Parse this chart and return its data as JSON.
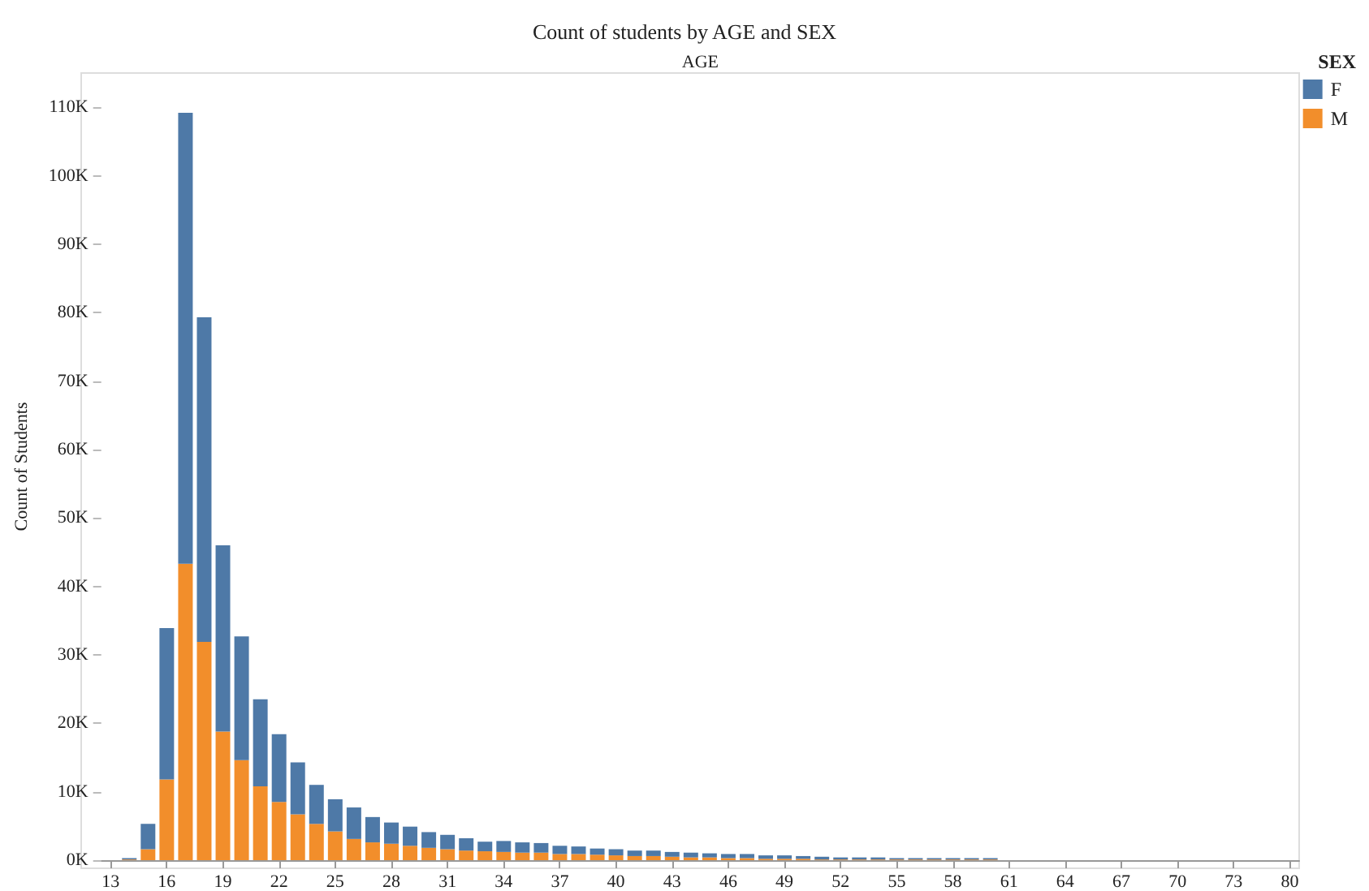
{
  "chart_data": {
    "type": "bar",
    "title": "Count of students by AGE and SEX",
    "xlabel": "AGE",
    "ylabel": "Count of Students",
    "legend_title": "SEX",
    "legend": "top right",
    "stacked": true,
    "grid": false,
    "categories": [
      "13",
      null,
      null,
      "16",
      null,
      null,
      "19",
      null,
      null,
      "22",
      null,
      null,
      "25",
      null,
      null,
      "28",
      null,
      null,
      "31",
      null,
      null,
      "34",
      null,
      null,
      "37",
      null,
      null,
      "40",
      null,
      null,
      "43",
      null,
      null,
      "46",
      null,
      null,
      "49",
      null,
      null,
      "52",
      null,
      null,
      "55",
      null,
      null,
      "58",
      null,
      null,
      "61",
      null,
      null,
      "64",
      null,
      null,
      "67",
      null,
      null,
      "70",
      null,
      null,
      "73",
      null,
      null,
      "80"
    ],
    "ylim": [
      0,
      115000
    ],
    "yticks": [
      {
        "value": 0,
        "label": "0K"
      },
      {
        "value": 10000,
        "label": "10K"
      },
      {
        "value": 20000,
        "label": "20K"
      },
      {
        "value": 30000,
        "label": "30K"
      },
      {
        "value": 40000,
        "label": "40K"
      },
      {
        "value": 50000,
        "label": "50K"
      },
      {
        "value": 60000,
        "label": "60K"
      },
      {
        "value": 70000,
        "label": "70K"
      },
      {
        "value": 80000,
        "label": "80K"
      },
      {
        "value": 90000,
        "label": "90K"
      },
      {
        "value": 100000,
        "label": "100K"
      },
      {
        "value": 110000,
        "label": "110K"
      }
    ],
    "series": [
      {
        "name": "M",
        "color": "#f28e2b",
        "values": [
          0,
          100,
          1600,
          11800,
          43300,
          31900,
          18800,
          14600,
          10800,
          8500,
          6700,
          5300,
          4200,
          3100,
          2600,
          2400,
          2100,
          1800,
          1600,
          1400,
          1300,
          1200,
          1100,
          1100,
          900,
          900,
          800,
          700,
          600,
          600,
          500,
          400,
          400,
          300,
          300,
          200,
          200,
          200,
          100,
          100,
          100,
          100,
          100,
          100,
          100,
          100,
          100,
          100,
          0,
          0,
          0,
          0,
          0,
          0,
          0,
          0,
          0,
          0,
          0,
          0,
          0,
          0,
          0,
          0
        ]
      },
      {
        "name": "F",
        "color": "#4e79a7",
        "values": [
          0,
          200,
          3700,
          22100,
          65900,
          47400,
          27200,
          18100,
          12700,
          9900,
          7600,
          5700,
          4700,
          4600,
          3700,
          3100,
          2800,
          2300,
          2100,
          1800,
          1400,
          1600,
          1500,
          1400,
          1200,
          1100,
          900,
          900,
          800,
          800,
          700,
          700,
          600,
          600,
          600,
          500,
          500,
          400,
          400,
          300,
          300,
          300,
          200,
          200,
          200,
          200,
          200,
          200,
          0,
          0,
          0,
          0,
          0,
          0,
          0,
          0,
          0,
          0,
          0,
          0,
          0,
          0,
          0,
          0
        ]
      }
    ]
  }
}
